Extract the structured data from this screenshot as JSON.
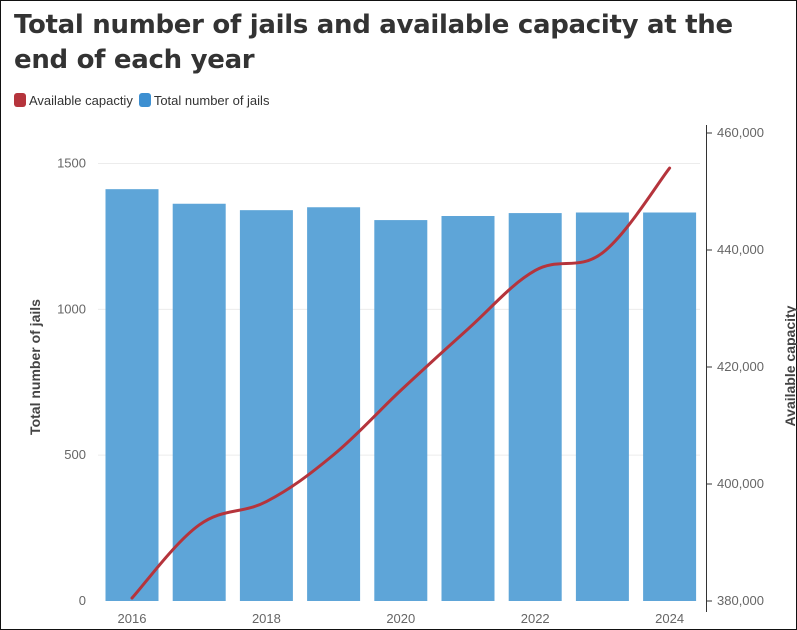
{
  "title": "Total number of jails and available capacity at the end of each year",
  "legend": [
    {
      "label": "Available capactiy",
      "color": "#b5343c"
    },
    {
      "label": "Total number of jails",
      "color": "#3d8fd1"
    }
  ],
  "chart_data": {
    "type": "bar",
    "x": [
      2016,
      2017,
      2018,
      2019,
      2020,
      2021,
      2022,
      2023,
      2024
    ],
    "x_tick_labels": [
      "2016",
      "2018",
      "2020",
      "2022",
      "2024"
    ],
    "series": [
      {
        "name": "Total number of jails",
        "type": "bar",
        "axis": "left",
        "color": "#5ea5d8",
        "values": [
          1412,
          1362,
          1340,
          1350,
          1306,
          1320,
          1330,
          1332,
          1332
        ]
      },
      {
        "name": "Available capactiy",
        "type": "line",
        "axis": "right",
        "color": "#b5343c",
        "values": [
          380500,
          393000,
          397000,
          405000,
          416000,
          426500,
          436500,
          439500,
          454000
        ]
      }
    ],
    "y_left": {
      "label": "Total number of jails",
      "ylim": [
        0,
        1500
      ],
      "ticks": [
        0,
        500,
        1000,
        1500
      ],
      "tick_labels": [
        "0",
        "500",
        "1000",
        "1500"
      ]
    },
    "y_right": {
      "label": "Available capacity",
      "ylim": [
        380000,
        460000
      ],
      "ticks": [
        380000,
        400000,
        420000,
        440000,
        460000
      ],
      "tick_labels": [
        "380,000",
        "400,000",
        "420,000",
        "440,000",
        "460,000"
      ]
    },
    "grid": true,
    "legend_position": "top-left"
  }
}
